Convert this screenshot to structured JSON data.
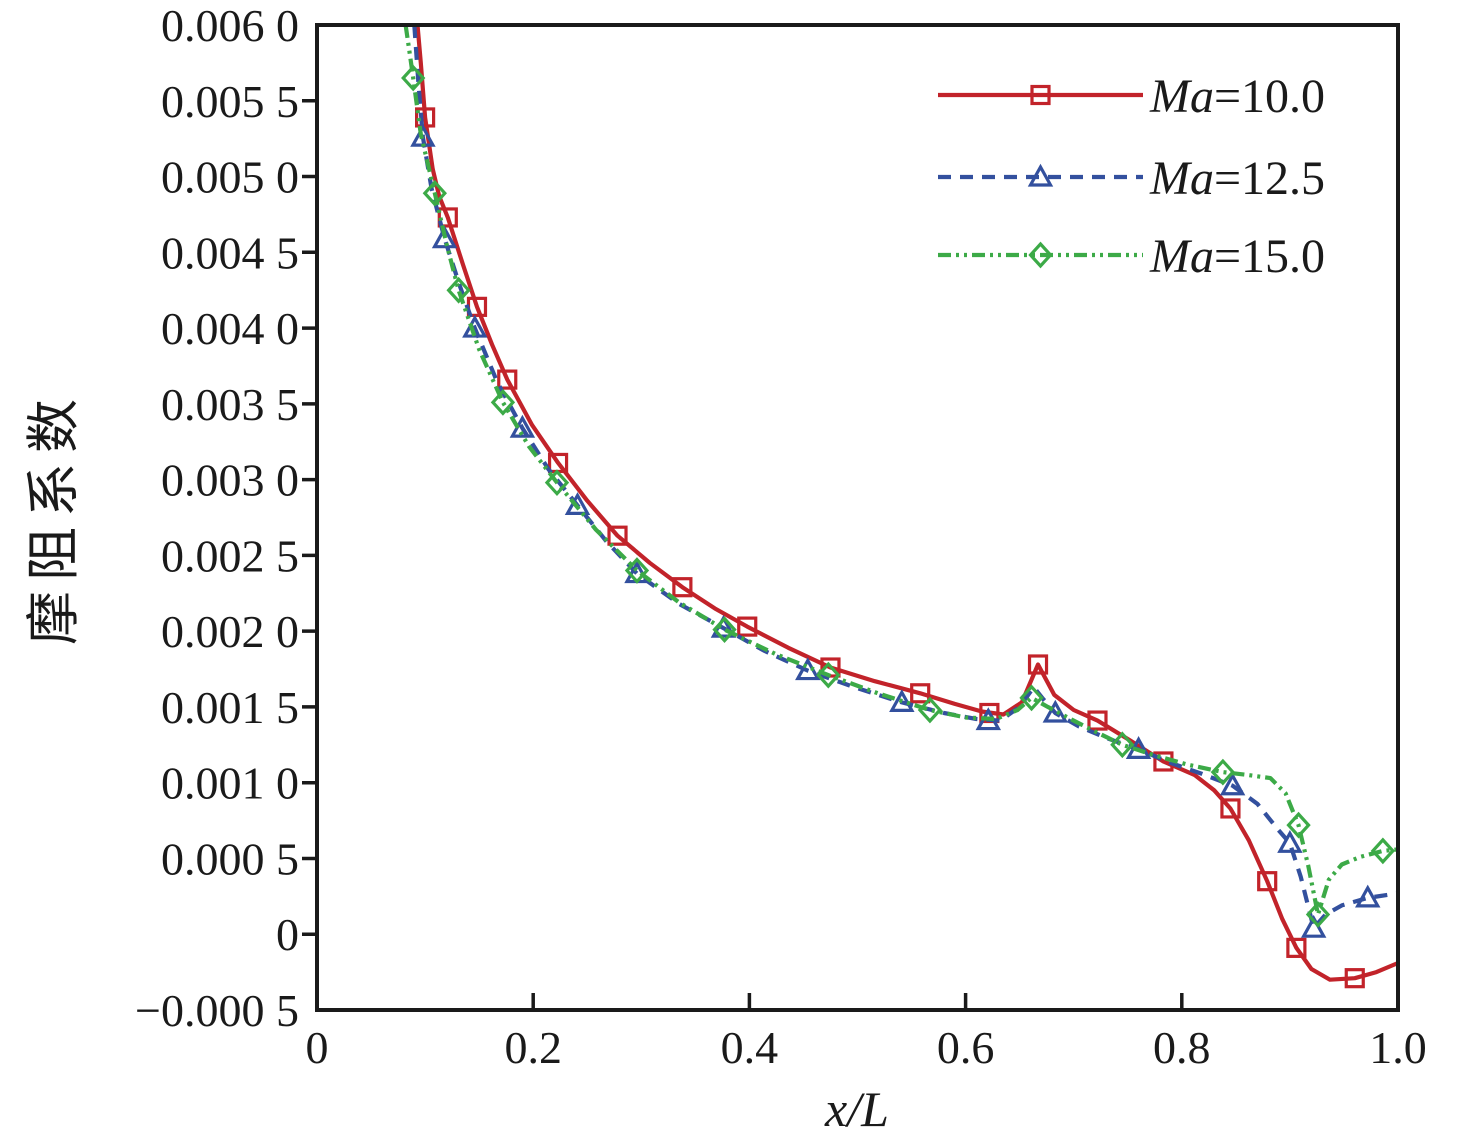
{
  "chart_data": {
    "type": "line",
    "title": "",
    "xlabel": "x/L",
    "ylabel": "摩阻系数",
    "xlim": [
      0,
      1.0
    ],
    "ylim": [
      -0.0005,
      0.006
    ],
    "grid": false,
    "background": "#ffffff",
    "axis_color": "#1a1a1a",
    "legend_position": "upper-right-inside",
    "xticks": [
      {
        "value": 0,
        "label": "0"
      },
      {
        "value": 0.2,
        "label": "0.2"
      },
      {
        "value": 0.4,
        "label": "0.4"
      },
      {
        "value": 0.6,
        "label": "0.6"
      },
      {
        "value": 0.8,
        "label": "0.8"
      },
      {
        "value": 1.0,
        "label": "1.0"
      }
    ],
    "yticks": [
      {
        "value": 0.006,
        "label": "0.006 0"
      },
      {
        "value": 0.0055,
        "label": "0.005 5"
      },
      {
        "value": 0.005,
        "label": "0.005 0"
      },
      {
        "value": 0.0045,
        "label": "0.004 5"
      },
      {
        "value": 0.004,
        "label": "0.004 0"
      },
      {
        "value": 0.0035,
        "label": "0.003 5"
      },
      {
        "value": 0.003,
        "label": "0.003 0"
      },
      {
        "value": 0.0025,
        "label": "0.002 5"
      },
      {
        "value": 0.002,
        "label": "0.002 0"
      },
      {
        "value": 0.0015,
        "label": "0.001 5"
      },
      {
        "value": 0.001,
        "label": "0.001 0"
      },
      {
        "value": 0.0005,
        "label": "0.000 5"
      },
      {
        "value": 0,
        "label": "0"
      },
      {
        "value": -0.0005,
        "label": "−0.000 5"
      }
    ],
    "series": [
      {
        "name": "Ma=10.0",
        "color": "#c2232a",
        "line_style": "solid",
        "marker": "open-square",
        "line": [
          [
            0.093,
            0.006
          ],
          [
            0.096,
            0.00575
          ],
          [
            0.1,
            0.00539
          ],
          [
            0.107,
            0.00505
          ],
          [
            0.113,
            0.00487
          ],
          [
            0.121,
            0.00473
          ],
          [
            0.135,
            0.00442
          ],
          [
            0.148,
            0.00414
          ],
          [
            0.162,
            0.00389
          ],
          [
            0.176,
            0.00366
          ],
          [
            0.199,
            0.00336
          ],
          [
            0.223,
            0.00311
          ],
          [
            0.25,
            0.00286
          ],
          [
            0.278,
            0.00263
          ],
          [
            0.308,
            0.00245
          ],
          [
            0.338,
            0.00229
          ],
          [
            0.368,
            0.00215
          ],
          [
            0.398,
            0.00203
          ],
          [
            0.436,
            0.00189
          ],
          [
            0.475,
            0.00176
          ],
          [
            0.516,
            0.00167
          ],
          [
            0.558,
            0.00159
          ],
          [
            0.59,
            0.00152
          ],
          [
            0.615,
            0.00147
          ],
          [
            0.635,
            0.00145
          ],
          [
            0.652,
            0.00153
          ],
          [
            0.667,
            0.00178
          ],
          [
            0.682,
            0.00158
          ],
          [
            0.7,
            0.00148
          ],
          [
            0.722,
            0.00141
          ],
          [
            0.752,
            0.00128
          ],
          [
            0.783,
            0.00114
          ],
          [
            0.812,
            0.00105
          ],
          [
            0.83,
            0.00095
          ],
          [
            0.845,
            0.00083
          ],
          [
            0.862,
            0.00062
          ],
          [
            0.879,
            0.00035
          ],
          [
            0.893,
            0.0001
          ],
          [
            0.906,
            -9e-05
          ],
          [
            0.92,
            -0.00023
          ],
          [
            0.937,
            -0.0003
          ],
          [
            0.96,
            -0.00029
          ],
          [
            0.98,
            -0.00025
          ],
          [
            1,
            -0.00019
          ]
        ],
        "markers": [
          [
            0.1,
            0.00539
          ],
          [
            0.121,
            0.00473
          ],
          [
            0.148,
            0.00414
          ],
          [
            0.176,
            0.00366
          ],
          [
            0.223,
            0.00311
          ],
          [
            0.278,
            0.00263
          ],
          [
            0.338,
            0.00229
          ],
          [
            0.398,
            0.00203
          ],
          [
            0.475,
            0.00176
          ],
          [
            0.558,
            0.00159
          ],
          [
            0.622,
            0.00146
          ],
          [
            0.667,
            0.00178
          ],
          [
            0.722,
            0.00141
          ],
          [
            0.783,
            0.00114
          ],
          [
            0.845,
            0.00083
          ],
          [
            0.879,
            0.00035
          ],
          [
            0.906,
            -9e-05
          ],
          [
            0.96,
            -0.00029
          ]
        ]
      },
      {
        "name": "Ma=12.5",
        "color": "#33509e",
        "line_style": "dashed",
        "marker": "open-triangle",
        "line": [
          [
            0.09,
            0.006
          ],
          [
            0.094,
            0.0056
          ],
          [
            0.098,
            0.00526
          ],
          [
            0.106,
            0.00492
          ],
          [
            0.118,
            0.00459
          ],
          [
            0.132,
            0.00428
          ],
          [
            0.146,
            0.004
          ],
          [
            0.167,
            0.00364
          ],
          [
            0.19,
            0.00334
          ],
          [
            0.214,
            0.00307
          ],
          [
            0.241,
            0.00283
          ],
          [
            0.268,
            0.00259
          ],
          [
            0.296,
            0.00238
          ],
          [
            0.335,
            0.00218
          ],
          [
            0.376,
            0.00202
          ],
          [
            0.414,
            0.00187
          ],
          [
            0.454,
            0.00174
          ],
          [
            0.497,
            0.00163
          ],
          [
            0.541,
            0.00153
          ],
          [
            0.58,
            0.00146
          ],
          [
            0.61,
            0.00142
          ],
          [
            0.632,
            0.00141
          ],
          [
            0.65,
            0.0015
          ],
          [
            0.663,
            0.00163
          ],
          [
            0.672,
            0.00155
          ],
          [
            0.683,
            0.00146
          ],
          [
            0.705,
            0.00137
          ],
          [
            0.732,
            0.00129
          ],
          [
            0.76,
            0.00122
          ],
          [
            0.79,
            0.00113
          ],
          [
            0.818,
            0.00106
          ],
          [
            0.847,
            0.00098
          ],
          [
            0.87,
            0.00086
          ],
          [
            0.888,
            0.0007
          ],
          [
            0.9,
            0.0006
          ],
          [
            0.91,
            0.00038
          ],
          [
            0.922,
            4e-05
          ],
          [
            0.933,
            0.00013
          ],
          [
            0.948,
            0.00019
          ],
          [
            0.972,
            0.00024
          ],
          [
            1,
            0.00027
          ]
        ],
        "markers": [
          [
            0.098,
            0.00526
          ],
          [
            0.118,
            0.00459
          ],
          [
            0.146,
            0.004
          ],
          [
            0.19,
            0.00334
          ],
          [
            0.241,
            0.00283
          ],
          [
            0.296,
            0.00238
          ],
          [
            0.376,
            0.00202
          ],
          [
            0.454,
            0.00174
          ],
          [
            0.541,
            0.00153
          ],
          [
            0.621,
            0.00141
          ],
          [
            0.683,
            0.00146
          ],
          [
            0.76,
            0.00122
          ],
          [
            0.847,
            0.00098
          ],
          [
            0.9,
            0.0006
          ],
          [
            0.922,
            4e-05
          ],
          [
            0.972,
            0.00024
          ]
        ]
      },
      {
        "name": "Ma=15.0",
        "color": "#3caa47",
        "line_style": "dash-dot-dot",
        "marker": "open-diamond",
        "line": [
          [
            0.082,
            0.006
          ],
          [
            0.085,
            0.00585
          ],
          [
            0.089,
            0.00565
          ],
          [
            0.096,
            0.00528
          ],
          [
            0.109,
            0.00489
          ],
          [
            0.12,
            0.00455
          ],
          [
            0.131,
            0.00425
          ],
          [
            0.15,
            0.00386
          ],
          [
            0.172,
            0.00351
          ],
          [
            0.196,
            0.00322
          ],
          [
            0.222,
            0.00298
          ],
          [
            0.258,
            0.00267
          ],
          [
            0.296,
            0.0024
          ],
          [
            0.335,
            0.00219
          ],
          [
            0.377,
            0.00201
          ],
          [
            0.424,
            0.00185
          ],
          [
            0.473,
            0.00171
          ],
          [
            0.519,
            0.00159
          ],
          [
            0.567,
            0.00148
          ],
          [
            0.6,
            0.00143
          ],
          [
            0.628,
            0.00142
          ],
          [
            0.648,
            0.00148
          ],
          [
            0.661,
            0.00156
          ],
          [
            0.676,
            0.0015
          ],
          [
            0.7,
            0.00141
          ],
          [
            0.722,
            0.00133
          ],
          [
            0.745,
            0.00125
          ],
          [
            0.775,
            0.00118
          ],
          [
            0.805,
            0.00112
          ],
          [
            0.838,
            0.00107
          ],
          [
            0.862,
            0.00105
          ],
          [
            0.882,
            0.00103
          ],
          [
            0.896,
            0.00093
          ],
          [
            0.908,
            0.00072
          ],
          [
            0.917,
            0.00045
          ],
          [
            0.926,
            0.00013
          ],
          [
            0.936,
            0.00036
          ],
          [
            0.948,
            0.00046
          ],
          [
            0.965,
            0.00051
          ],
          [
            0.986,
            0.00055
          ],
          [
            1,
            0.00056
          ]
        ],
        "markers": [
          [
            0.089,
            0.00565
          ],
          [
            0.109,
            0.00489
          ],
          [
            0.131,
            0.00425
          ],
          [
            0.172,
            0.00351
          ],
          [
            0.222,
            0.00298
          ],
          [
            0.296,
            0.0024
          ],
          [
            0.377,
            0.00201
          ],
          [
            0.473,
            0.00171
          ],
          [
            0.567,
            0.00148
          ],
          [
            0.661,
            0.00156
          ],
          [
            0.745,
            0.00125
          ],
          [
            0.838,
            0.00107
          ],
          [
            0.908,
            0.00072
          ],
          [
            0.926,
            0.00013
          ],
          [
            0.986,
            0.00055
          ]
        ]
      }
    ]
  }
}
